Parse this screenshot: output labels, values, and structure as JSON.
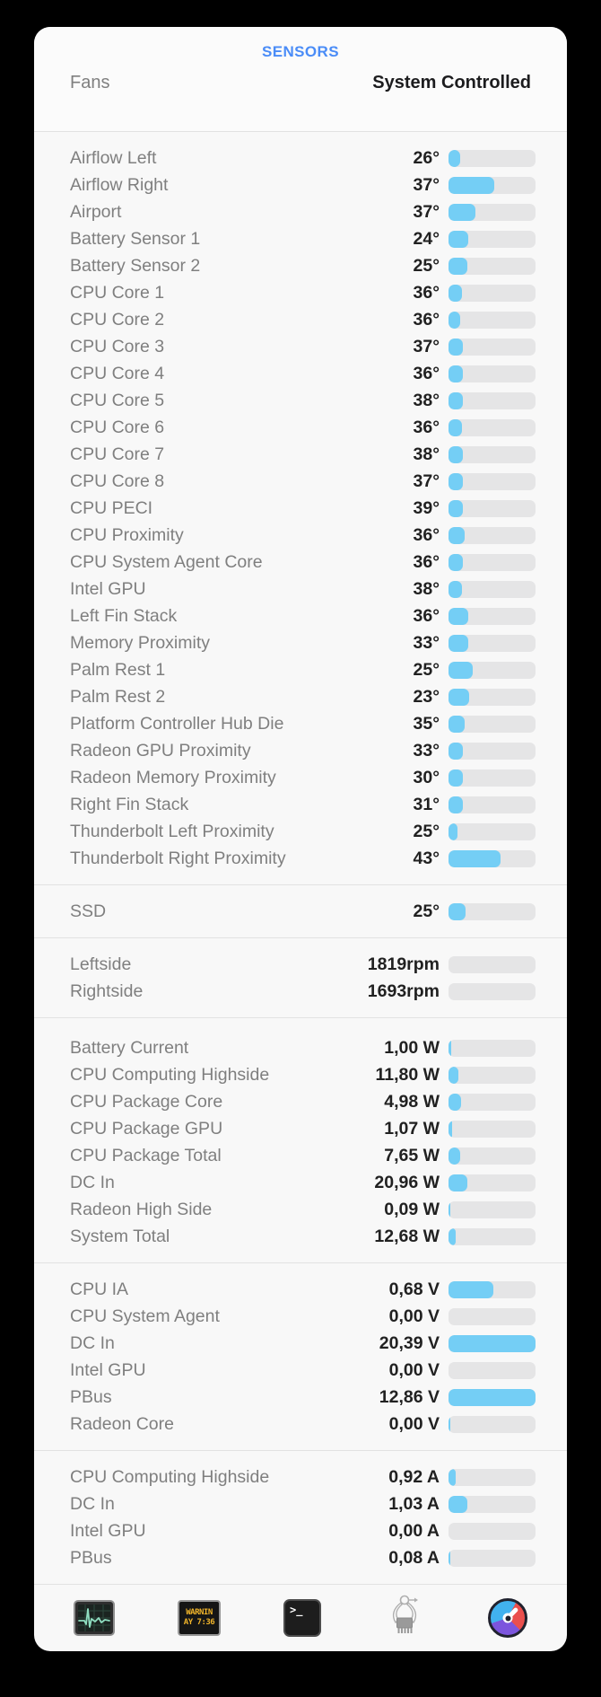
{
  "panel": {
    "title": "SENSORS",
    "accent_color": "#4A8CF7",
    "bar_fill_color": "#74CEF5",
    "bar_track_color": "#E5E5E6",
    "header": {
      "label": "Fans",
      "value": "System Controlled"
    },
    "sections": [
      {
        "name": "temperatures",
        "rows": [
          {
            "label": "Airflow Left",
            "value": "26°",
            "fill": 0.13
          },
          {
            "label": "Airflow Right",
            "value": "37°",
            "fill": 0.53
          },
          {
            "label": "Airport",
            "value": "37°",
            "fill": 0.31
          },
          {
            "label": "Battery Sensor 1",
            "value": "24°",
            "fill": 0.23
          },
          {
            "label": "Battery Sensor 2",
            "value": "25°",
            "fill": 0.22
          },
          {
            "label": "CPU Core 1",
            "value": "36°",
            "fill": 0.15
          },
          {
            "label": "CPU Core 2",
            "value": "36°",
            "fill": 0.13
          },
          {
            "label": "CPU Core 3",
            "value": "37°",
            "fill": 0.17
          },
          {
            "label": "CPU Core 4",
            "value": "36°",
            "fill": 0.16
          },
          {
            "label": "CPU Core 5",
            "value": "38°",
            "fill": 0.17
          },
          {
            "label": "CPU Core 6",
            "value": "36°",
            "fill": 0.15
          },
          {
            "label": "CPU Core 7",
            "value": "38°",
            "fill": 0.17
          },
          {
            "label": "CPU Core 8",
            "value": "37°",
            "fill": 0.16
          },
          {
            "label": "CPU PECI",
            "value": "39°",
            "fill": 0.17
          },
          {
            "label": "CPU Proximity",
            "value": "36°",
            "fill": 0.19
          },
          {
            "label": "CPU System Agent Core",
            "value": "36°",
            "fill": 0.17
          },
          {
            "label": "Intel GPU",
            "value": "38°",
            "fill": 0.15
          },
          {
            "label": "Left Fin Stack",
            "value": "36°",
            "fill": 0.23
          },
          {
            "label": "Memory Proximity",
            "value": "33°",
            "fill": 0.23
          },
          {
            "label": "Palm Rest 1",
            "value": "25°",
            "fill": 0.28
          },
          {
            "label": "Palm Rest 2",
            "value": "23°",
            "fill": 0.24
          },
          {
            "label": "Platform Controller Hub Die",
            "value": "35°",
            "fill": 0.19
          },
          {
            "label": "Radeon GPU Proximity",
            "value": "33°",
            "fill": 0.16
          },
          {
            "label": "Radeon Memory Proximity",
            "value": "30°",
            "fill": 0.17
          },
          {
            "label": "Right Fin Stack",
            "value": "31°",
            "fill": 0.16
          },
          {
            "label": "Thunderbolt Left Proximity",
            "value": "25°",
            "fill": 0.1
          },
          {
            "label": "Thunderbolt Right Proximity",
            "value": "43°",
            "fill": 0.6
          }
        ]
      },
      {
        "name": "ssd",
        "rows": [
          {
            "label": "SSD",
            "value": "25°",
            "fill": 0.2
          }
        ]
      },
      {
        "name": "fans",
        "rows": [
          {
            "label": "Leftside",
            "value": "1819rpm",
            "fill": 0
          },
          {
            "label": "Rightside",
            "value": "1693rpm",
            "fill": 0
          }
        ]
      },
      {
        "name": "power",
        "rows": [
          {
            "label": "Battery Current",
            "value": "1,00 W",
            "fill": 0.03
          },
          {
            "label": "CPU Computing Highside",
            "value": "11,80 W",
            "fill": 0.11
          },
          {
            "label": "CPU Package Core",
            "value": "4,98 W",
            "fill": 0.14
          },
          {
            "label": "CPU Package GPU",
            "value": "1,07 W",
            "fill": 0.04
          },
          {
            "label": "CPU Package Total",
            "value": "7,65 W",
            "fill": 0.13
          },
          {
            "label": "DC In",
            "value": "20,96 W",
            "fill": 0.22
          },
          {
            "label": "Radeon High Side",
            "value": "0,09 W",
            "fill": 0.02
          },
          {
            "label": "System Total",
            "value": "12,68 W",
            "fill": 0.08
          }
        ]
      },
      {
        "name": "voltage",
        "rows": [
          {
            "label": "CPU IA",
            "value": "0,68 V",
            "fill": 0.52
          },
          {
            "label": "CPU System Agent",
            "value": "0,00 V",
            "fill": 0
          },
          {
            "label": "DC In",
            "value": "20,39 V",
            "fill": 1
          },
          {
            "label": "Intel GPU",
            "value": "0,00 V",
            "fill": 0
          },
          {
            "label": "PBus",
            "value": "12,86 V",
            "fill": 1
          },
          {
            "label": "Radeon Core",
            "value": "0,00 V",
            "fill": 0.02
          }
        ]
      },
      {
        "name": "current",
        "rows": [
          {
            "label": "CPU Computing Highside",
            "value": "0,92 A",
            "fill": 0.08
          },
          {
            "label": "DC In",
            "value": "1,03 A",
            "fill": 0.22
          },
          {
            "label": "Intel GPU",
            "value": "0,00 A",
            "fill": 0
          },
          {
            "label": "PBus",
            "value": "0,08 A",
            "fill": 0.02
          }
        ]
      }
    ],
    "toolbar": {
      "icons": [
        "activity-graph-icon",
        "warning-display-icon",
        "terminal-icon",
        "chip-caliper-icon",
        "gauge-icon"
      ],
      "warning_line1": "WARNIN",
      "warning_line2": "AY 7:36",
      "terminal_prompt": ">_"
    }
  }
}
